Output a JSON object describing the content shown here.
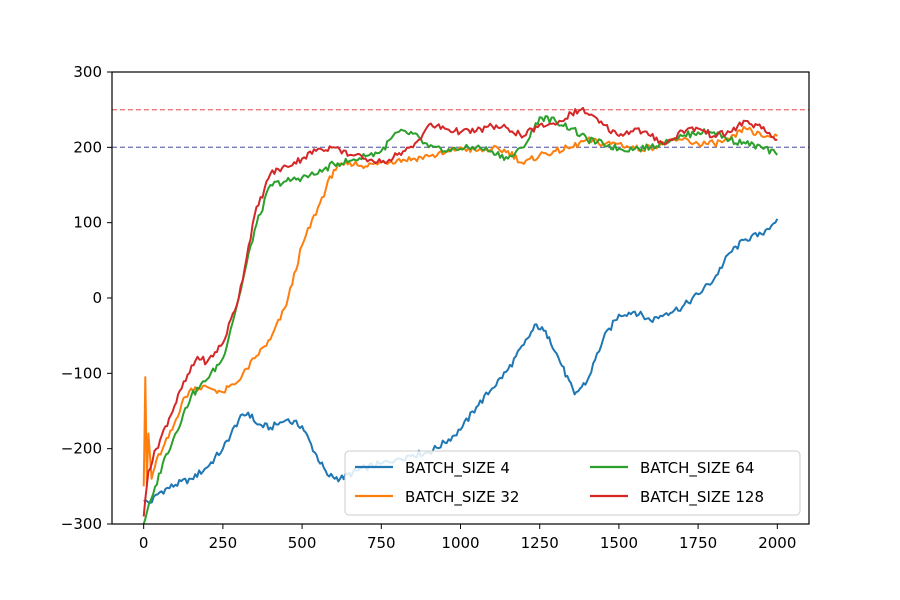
{
  "chart_data": {
    "type": "line",
    "title": "",
    "xlabel": "",
    "ylabel": "",
    "xlim": [
      -100,
      2100
    ],
    "ylim": [
      -300,
      300
    ],
    "x_ticks": [
      0,
      250,
      500,
      750,
      1000,
      1250,
      1500,
      1750,
      2000
    ],
    "y_ticks": [
      -300,
      -200,
      -100,
      0,
      100,
      200,
      300
    ],
    "y_tick_labels": [
      "−300",
      "−200",
      "−100",
      "0",
      "100",
      "200",
      "300"
    ],
    "grid": false,
    "legend_placement": "lower-right",
    "legend_columns": 2,
    "reference_lines": [
      {
        "y": 250,
        "color": "#f07a78",
        "style": "dashed"
      },
      {
        "y": 200,
        "color": "#7a7ab8",
        "style": "dashed"
      }
    ],
    "series": [
      {
        "name": "BATCH_SIZE 4",
        "color": "#1f77b4",
        "x": [
          0,
          20,
          50,
          100,
          150,
          200,
          250,
          300,
          330,
          360,
          400,
          450,
          500,
          540,
          580,
          620,
          660,
          700,
          750,
          800,
          850,
          900,
          950,
          1000,
          1050,
          1100,
          1150,
          1200,
          1240,
          1280,
          1320,
          1360,
          1400,
          1450,
          1500,
          1550,
          1600,
          1650,
          1700,
          1750,
          1800,
          1850,
          1900,
          1950,
          2000
        ],
        "y": [
          -270,
          -272,
          -258,
          -248,
          -240,
          -225,
          -200,
          -162,
          -152,
          -168,
          -172,
          -162,
          -170,
          -205,
          -235,
          -240,
          -232,
          -225,
          -220,
          -213,
          -208,
          -205,
          -192,
          -175,
          -145,
          -120,
          -95,
          -62,
          -35,
          -52,
          -90,
          -128,
          -110,
          -55,
          -22,
          -18,
          -30,
          -20,
          -12,
          5,
          25,
          60,
          78,
          85,
          105
        ]
      },
      {
        "name": "BATCH_SIZE 32",
        "color": "#ff7f0e",
        "x": [
          0,
          5,
          10,
          15,
          25,
          40,
          60,
          90,
          120,
          150,
          200,
          250,
          300,
          350,
          400,
          450,
          500,
          550,
          600,
          650,
          700,
          750,
          800,
          850,
          900,
          950,
          1000,
          1050,
          1100,
          1150,
          1200,
          1250,
          1300,
          1350,
          1400,
          1450,
          1500,
          1550,
          1600,
          1650,
          1700,
          1750,
          1800,
          1850,
          1900,
          1950,
          2000
        ],
        "y": [
          -250,
          -105,
          -245,
          -180,
          -240,
          -215,
          -200,
          -175,
          -140,
          -120,
          -118,
          -125,
          -110,
          -80,
          -55,
          -10,
          70,
          120,
          170,
          180,
          175,
          180,
          183,
          185,
          188,
          192,
          200,
          195,
          198,
          195,
          178,
          190,
          195,
          200,
          210,
          205,
          205,
          198,
          200,
          205,
          210,
          205,
          205,
          210,
          225,
          215,
          215
        ]
      },
      {
        "name": "BATCH_SIZE 64",
        "color": "#2ca02c",
        "x": [
          0,
          10,
          30,
          60,
          100,
          150,
          200,
          250,
          300,
          350,
          400,
          450,
          500,
          550,
          600,
          650,
          700,
          750,
          800,
          850,
          900,
          950,
          1000,
          1050,
          1100,
          1150,
          1200,
          1250,
          1300,
          1350,
          1400,
          1450,
          1500,
          1550,
          1600,
          1650,
          1700,
          1750,
          1800,
          1850,
          1900,
          1950,
          2000
        ],
        "y": [
          -300,
          -285,
          -260,
          -220,
          -180,
          -130,
          -108,
          -80,
          0,
          90,
          150,
          155,
          160,
          165,
          178,
          182,
          188,
          195,
          220,
          218,
          200,
          195,
          198,
          200,
          195,
          185,
          200,
          240,
          235,
          225,
          210,
          205,
          198,
          198,
          200,
          210,
          215,
          220,
          220,
          210,
          205,
          200,
          190
        ]
      },
      {
        "name": "BATCH_SIZE 128",
        "color": "#d62728",
        "x": [
          0,
          15,
          40,
          80,
          120,
          170,
          200,
          250,
          300,
          350,
          400,
          450,
          500,
          550,
          600,
          650,
          700,
          750,
          800,
          850,
          900,
          950,
          1000,
          1050,
          1100,
          1150,
          1200,
          1250,
          1300,
          1350,
          1380,
          1400,
          1450,
          1500,
          1550,
          1600,
          1650,
          1700,
          1750,
          1800,
          1850,
          1900,
          1950,
          2000
        ],
        "y": [
          -290,
          -230,
          -200,
          -160,
          -120,
          -78,
          -85,
          -60,
          0,
          110,
          165,
          175,
          185,
          198,
          200,
          190,
          185,
          180,
          190,
          200,
          230,
          225,
          220,
          222,
          228,
          225,
          215,
          230,
          230,
          245,
          250,
          245,
          230,
          215,
          225,
          215,
          205,
          222,
          225,
          215,
          220,
          235,
          225,
          210
        ]
      }
    ]
  }
}
